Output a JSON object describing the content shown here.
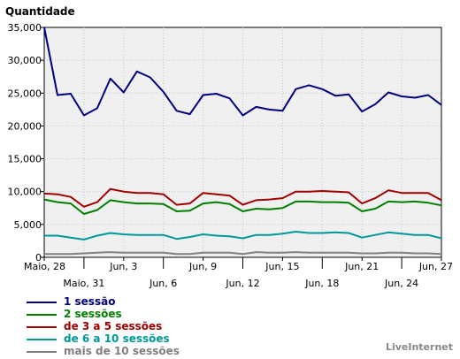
{
  "brand": "LiveInternet",
  "chart_data": {
    "type": "line",
    "title": "",
    "xlabel": "",
    "ylabel": "Quantidade",
    "ylim": [
      0,
      35000
    ],
    "yticks": [
      0,
      5000,
      10000,
      15000,
      20000,
      25000,
      30000,
      35000
    ],
    "ytick_labels": [
      "0",
      "5,000",
      "10,000",
      "15,000",
      "20,000",
      "25,000",
      "30,000",
      "35,000"
    ],
    "x_labels_upper": [
      "Maio, 28",
      "Jun, 3",
      "Jun, 9",
      "Jun, 15",
      "Jun, 21",
      "Jun, 27"
    ],
    "x_labels_lower": [
      "Maio, 31",
      "Jun, 6",
      "Jun, 12",
      "Jun, 18",
      "Jun, 24"
    ],
    "dates": [
      "Maio, 28",
      "Maio, 29",
      "Maio, 30",
      "Maio, 31",
      "Jun, 1",
      "Jun, 2",
      "Jun, 3",
      "Jun, 4",
      "Jun, 5",
      "Jun, 6",
      "Jun, 7",
      "Jun, 8",
      "Jun, 9",
      "Jun, 10",
      "Jun, 11",
      "Jun, 12",
      "Jun, 13",
      "Jun, 14",
      "Jun, 15",
      "Jun, 16",
      "Jun, 17",
      "Jun, 18",
      "Jun, 19",
      "Jun, 20",
      "Jun, 21",
      "Jun, 22",
      "Jun, 23",
      "Jun, 24",
      "Jun, 25",
      "Jun, 26",
      "Jun, 27"
    ],
    "grid": true,
    "legend_position": "bottom-left",
    "series": [
      {
        "name": "1 sessão",
        "color": "#000080",
        "values": [
          35000,
          24700,
          24900,
          21600,
          22700,
          27200,
          25100,
          28300,
          27400,
          25200,
          22300,
          21800,
          24700,
          24900,
          24200,
          21600,
          22900,
          22500,
          22300,
          25600,
          26200,
          25600,
          24600,
          24800,
          22200,
          23300,
          25100,
          24500,
          24300,
          24700,
          23200
        ]
      },
      {
        "name": "2 sessões",
        "color": "#008000",
        "values": [
          8800,
          8400,
          8200,
          6600,
          7200,
          8700,
          8400,
          8200,
          8200,
          8100,
          7000,
          7100,
          8200,
          8400,
          8100,
          7000,
          7400,
          7300,
          7500,
          8500,
          8500,
          8400,
          8400,
          8300,
          7000,
          7400,
          8500,
          8400,
          8500,
          8300,
          7900
        ]
      },
      {
        "name": "de 3 a 5 sessões",
        "color": "#a00000",
        "values": [
          9700,
          9600,
          9200,
          7700,
          8400,
          10400,
          10000,
          9800,
          9800,
          9600,
          8000,
          8200,
          9800,
          9600,
          9400,
          8000,
          8700,
          8800,
          9000,
          10000,
          10000,
          10100,
          10000,
          9900,
          8200,
          9000,
          10200,
          9800,
          9800,
          9800,
          8700
        ]
      },
      {
        "name": "de 6 a 10 sessões",
        "color": "#009999",
        "values": [
          3300,
          3300,
          3000,
          2700,
          3300,
          3700,
          3500,
          3400,
          3400,
          3400,
          2800,
          3100,
          3500,
          3300,
          3200,
          2900,
          3400,
          3400,
          3600,
          3900,
          3700,
          3700,
          3800,
          3700,
          3000,
          3400,
          3800,
          3600,
          3400,
          3400,
          2900
        ]
      },
      {
        "name": "mais de 10 sessões",
        "color": "#808080",
        "values": [
          500,
          500,
          500,
          600,
          700,
          800,
          700,
          700,
          700,
          700,
          500,
          500,
          700,
          700,
          700,
          500,
          800,
          700,
          700,
          800,
          700,
          700,
          700,
          700,
          600,
          600,
          700,
          700,
          600,
          600,
          500
        ]
      }
    ]
  }
}
